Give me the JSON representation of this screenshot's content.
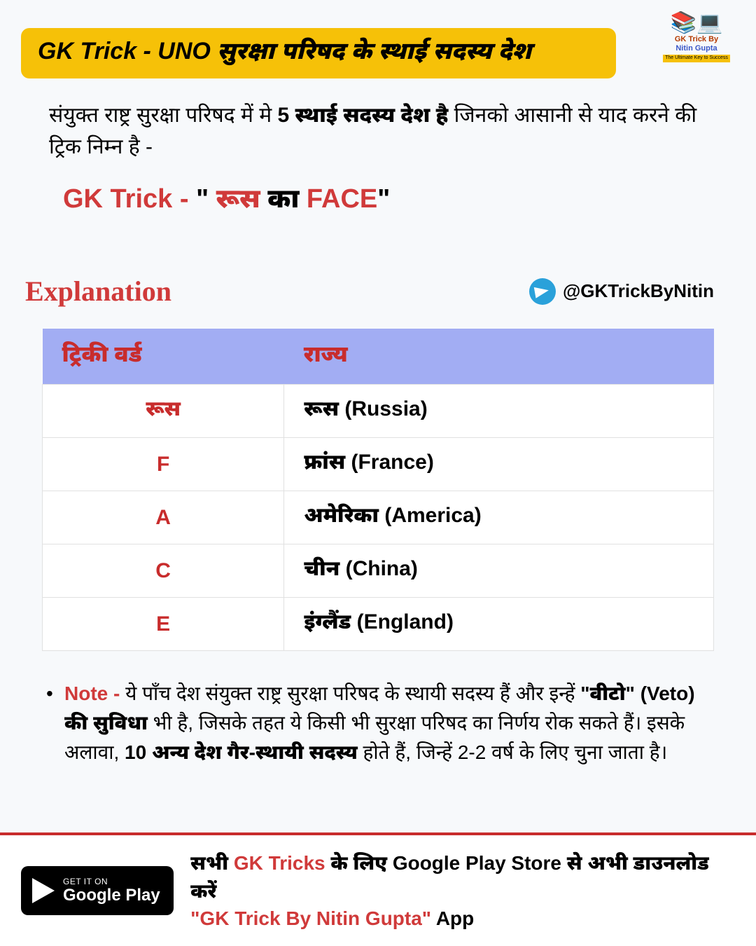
{
  "header": {
    "title": "GK Trick - UNO सुरक्षा परिषद के स्थाई सदस्य देश"
  },
  "logo": {
    "line1": "GK Trick By",
    "line2": "Nitin Gupta",
    "tagline": "The Ultimate Key to Success"
  },
  "intro": {
    "pre": "संयुक्त राष्ट्र सुरक्षा परिषद में मे ",
    "bold": "5 स्थाई सदस्य देश है ",
    "post": "जिनको आसानी से याद करने की ट्रिक निम्न है -"
  },
  "trick": {
    "label": "GK Trick - ",
    "quote_open": " \" ",
    "w1": "रूस",
    "w2": " का ",
    "w3": "FACE",
    "quote_close": "\""
  },
  "explanation_label": "Explanation",
  "telegram_handle": "@GKTrickByNitin",
  "table": {
    "columns": [
      "ट्रिकी वर्ड",
      "राज्य"
    ],
    "rows": [
      {
        "trick": "रूस",
        "state": "रूस (Russia)"
      },
      {
        "trick": "F",
        "state": "फ्रांस (France)"
      },
      {
        "trick": "A",
        "state": "अमेरिका (America)"
      },
      {
        "trick": "C",
        "state": "चीन (China)"
      },
      {
        "trick": "E",
        "state": "इंग्लैंड (England)"
      }
    ]
  },
  "note": {
    "label": "Note - ",
    "t1": "ये पाँच देश संयुक्त राष्ट्र सुरक्षा परिषद के स्थायी सदस्य हैं और इन्हें ",
    "b1": "\"वीटो\" (Veto) की सुविधा",
    "t2": " भी है, जिसके तहत ये किसी भी सुरक्षा परिषद का निर्णय रोक सकते हैं। इसके अलावा, ",
    "b2": "10 अन्य देश गैर-स्थायी सदस्य",
    "t3": " होते हैं, जिन्हें 2-2 वर्ष के लिए चुना जाता है।"
  },
  "footer": {
    "gp_small": "GET IT ON",
    "gp_big": "Google Play",
    "line1_a": "सभी ",
    "line1_red": "GK Tricks",
    "line1_b": " के लिए Google Play Store से अभी डाउनलोड करें",
    "line2_red": "\"GK Trick By Nitin Gupta\"",
    "line2_b": " App"
  },
  "colors": {
    "bg": "#f7f9fb",
    "banner": "#f6c108",
    "red": "#d03a3a",
    "darkred": "#c82c2c",
    "tableHeaderBg": "#a2adf3",
    "telegram": "#2aa1da"
  }
}
